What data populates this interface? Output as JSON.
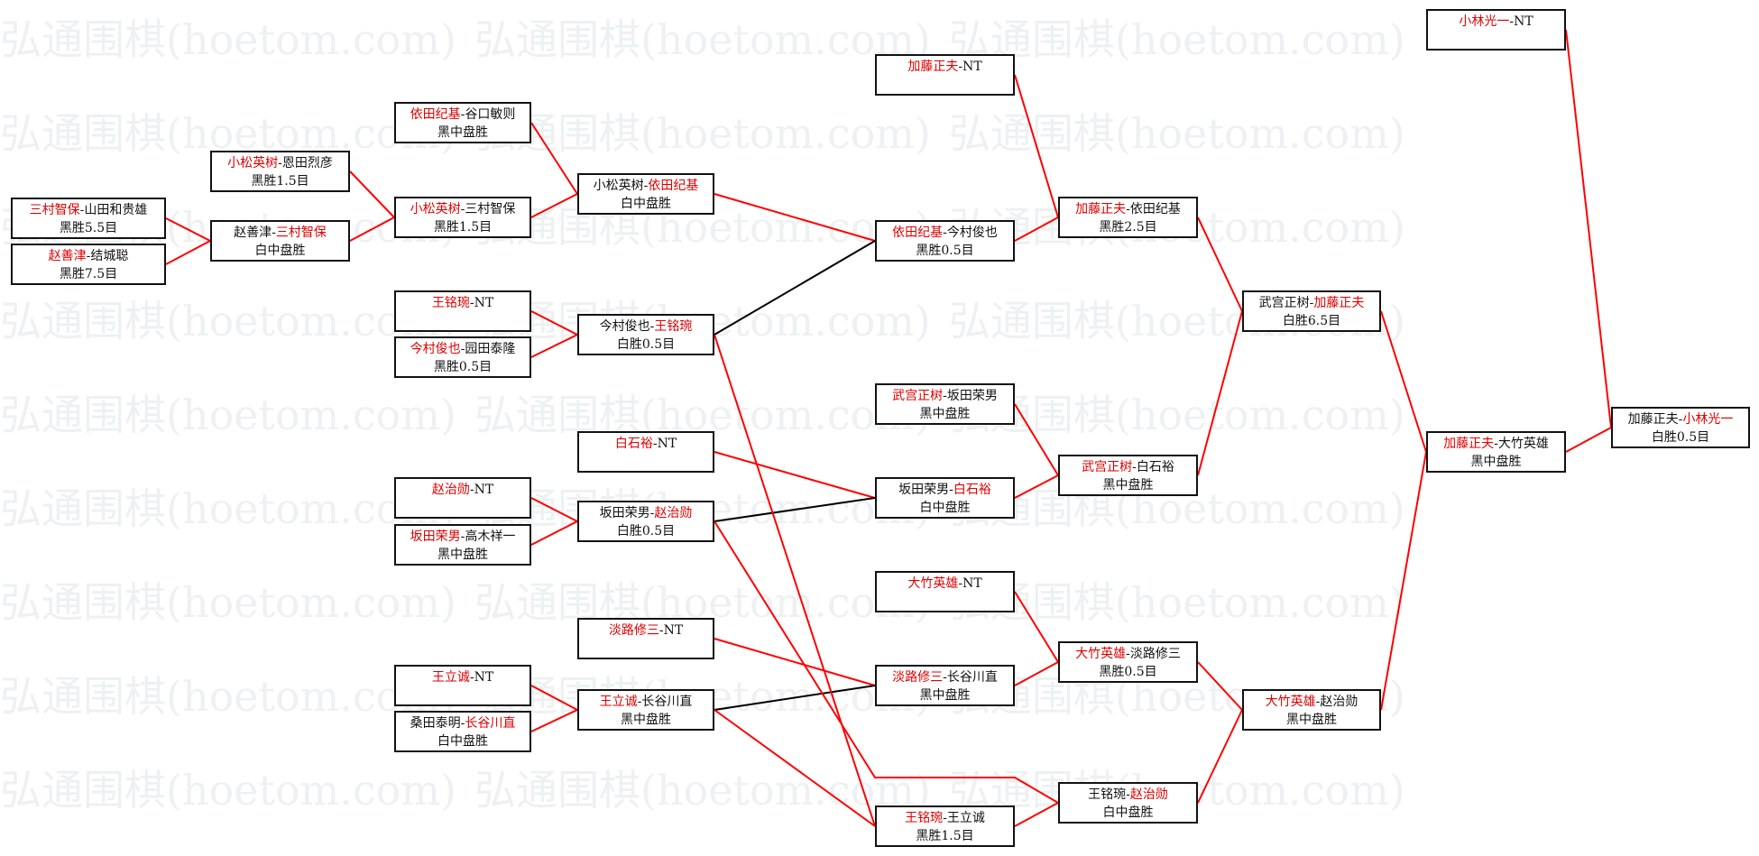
{
  "watermark": "弘通围棋(hoetom.com)",
  "colors": {
    "winner_text": "#e00000",
    "winner_line": "#ff0000",
    "loser_line": "#000000",
    "box_border": "#111111"
  },
  "separator": "-",
  "matches": {
    "m1": {
      "p1": "三村智保",
      "p2": "山田和贵雄",
      "winner": 1,
      "result": "黑胜5.5目"
    },
    "m2": {
      "p1": "赵善津",
      "p2": "结城聪",
      "winner": 1,
      "result": "黑胜7.5目"
    },
    "m3": {
      "p1": "小松英树",
      "p2": "恩田烈彦",
      "winner": 1,
      "result": "黑胜1.5目"
    },
    "m4": {
      "p1": "赵善津",
      "p2": "三村智保",
      "winner": 2,
      "result": "白中盘胜"
    },
    "m5": {
      "p1": "依田纪基",
      "p2": "谷口敏则",
      "winner": 1,
      "result": "黑中盘胜"
    },
    "m6": {
      "p1": "小松英树",
      "p2": "三村智保",
      "winner": 1,
      "result": "黑胜1.5目"
    },
    "m7": {
      "p1": "小松英树",
      "p2": "依田纪基",
      "winner": 2,
      "result": "白中盘胜"
    },
    "m8": {
      "p1": "王铭琬",
      "p2": "NT",
      "winner": 1,
      "result": ""
    },
    "m9": {
      "p1": "今村俊也",
      "p2": "园田泰隆",
      "winner": 1,
      "result": "黑胜0.5目"
    },
    "m10": {
      "p1": "今村俊也",
      "p2": "王铭琬",
      "winner": 2,
      "result": "白胜0.5目"
    },
    "m11": {
      "p1": "白石裕",
      "p2": "NT",
      "winner": 1,
      "result": ""
    },
    "m12": {
      "p1": "赵治勋",
      "p2": "NT",
      "winner": 1,
      "result": ""
    },
    "m13": {
      "p1": "坂田荣男",
      "p2": "高木祥一",
      "winner": 1,
      "result": "黑中盘胜"
    },
    "m14": {
      "p1": "坂田荣男",
      "p2": "赵治勋",
      "winner": 2,
      "result": "白胜0.5目"
    },
    "m15": {
      "p1": "淡路修三",
      "p2": "NT",
      "winner": 1,
      "result": ""
    },
    "m16": {
      "p1": "王立诚",
      "p2": "NT",
      "winner": 1,
      "result": ""
    },
    "m17": {
      "p1": "桑田泰明",
      "p2": "长谷川直",
      "winner": 2,
      "result": "白中盘胜"
    },
    "m18": {
      "p1": "王立诚",
      "p2": "长谷川直",
      "winner": 1,
      "result": "黑中盘胜"
    },
    "m19": {
      "p1": "加藤正夫",
      "p2": "NT",
      "winner": 1,
      "result": ""
    },
    "m20": {
      "p1": "依田纪基",
      "p2": "今村俊也",
      "winner": 1,
      "result": "黑胜0.5目"
    },
    "m21": {
      "p1": "武宫正树",
      "p2": "坂田荣男",
      "winner": 1,
      "result": "黑中盘胜"
    },
    "m22": {
      "p1": "坂田荣男",
      "p2": "白石裕",
      "winner": 2,
      "result": "白中盘胜"
    },
    "m23": {
      "p1": "大竹英雄",
      "p2": "NT",
      "winner": 1,
      "result": ""
    },
    "m24": {
      "p1": "淡路修三",
      "p2": "长谷川直",
      "winner": 1,
      "result": "黑中盘胜"
    },
    "m25": {
      "p1": "王铭琬",
      "p2": "王立诚",
      "winner": 1,
      "result": "黑胜1.5目"
    },
    "m26": {
      "p1": "加藤正夫",
      "p2": "依田纪基",
      "winner": 1,
      "result": "黑胜2.5目"
    },
    "m27": {
      "p1": "武宫正树",
      "p2": "白石裕",
      "winner": 1,
      "result": "黑中盘胜"
    },
    "m28": {
      "p1": "大竹英雄",
      "p2": "淡路修三",
      "winner": 1,
      "result": "黑胜0.5目"
    },
    "m29": {
      "p1": "王铭琬",
      "p2": "赵治勋",
      "winner": 2,
      "result": "白中盘胜"
    },
    "m30": {
      "p1": "武宫正树",
      "p2": "加藤正夫",
      "winner": 2,
      "result": "白胜6.5目"
    },
    "m31": {
      "p1": "大竹英雄",
      "p2": "赵治勋",
      "winner": 1,
      "result": "黑中盘胜"
    },
    "m32": {
      "p1": "小林光一",
      "p2": "NT",
      "winner": 1,
      "result": ""
    },
    "m33": {
      "p1": "加藤正夫",
      "p2": "大竹英雄",
      "winner": 1,
      "result": "黑中盘胜"
    },
    "m34": {
      "p1": "加藤正夫",
      "p2": "小林光一",
      "winner": 2,
      "result": "白胜0.5目"
    }
  }
}
